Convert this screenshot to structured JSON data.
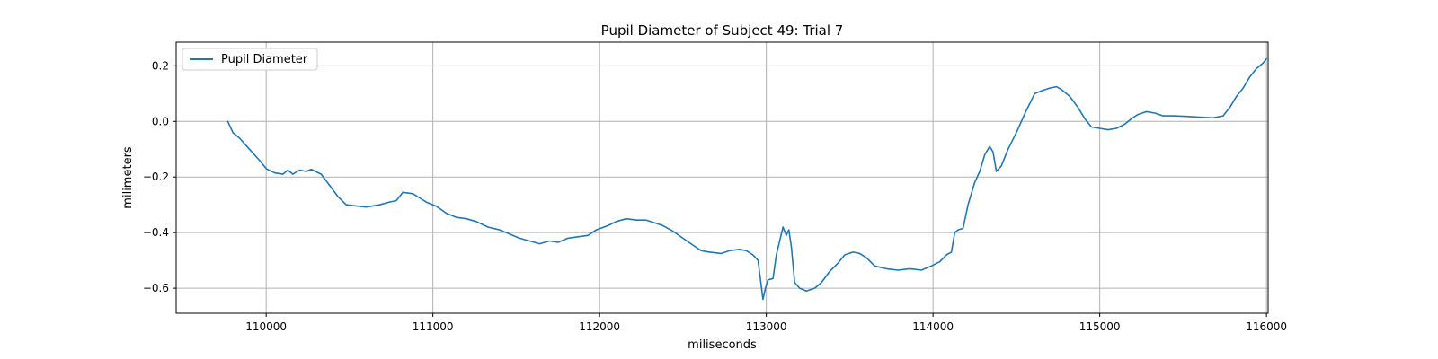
{
  "chart_data": {
    "type": "line",
    "title": "Pupil Diameter of Subject 49: Trial 7",
    "xlabel": "miliseconds",
    "ylabel": "milimeters",
    "xlim": [
      109460,
      116010
    ],
    "ylim": [
      -0.69,
      0.285
    ],
    "xticks": [
      110000,
      111000,
      112000,
      113000,
      114000,
      115000,
      116000
    ],
    "xtick_labels": [
      "110000",
      "111000",
      "112000",
      "113000",
      "114000",
      "115000",
      "116000"
    ],
    "yticks": [
      -0.6,
      -0.4,
      -0.2,
      0.0,
      0.2
    ],
    "ytick_labels": [
      "−0.6",
      "−0.4",
      "−0.2",
      "0.0",
      "0.2"
    ],
    "grid": true,
    "legend_position": "upper-left",
    "series": [
      {
        "name": "Pupil Diameter",
        "color": "#1f77b4",
        "points": [
          [
            109770,
            0.0
          ],
          [
            109800,
            -0.04
          ],
          [
            109840,
            -0.06
          ],
          [
            109900,
            -0.1
          ],
          [
            109960,
            -0.14
          ],
          [
            110000,
            -0.17
          ],
          [
            110050,
            -0.185
          ],
          [
            110100,
            -0.19
          ],
          [
            110130,
            -0.175
          ],
          [
            110160,
            -0.19
          ],
          [
            110200,
            -0.175
          ],
          [
            110240,
            -0.18
          ],
          [
            110270,
            -0.172
          ],
          [
            110330,
            -0.19
          ],
          [
            110380,
            -0.23
          ],
          [
            110430,
            -0.27
          ],
          [
            110480,
            -0.3
          ],
          [
            110550,
            -0.305
          ],
          [
            110600,
            -0.308
          ],
          [
            110680,
            -0.3
          ],
          [
            110740,
            -0.29
          ],
          [
            110780,
            -0.285
          ],
          [
            110820,
            -0.255
          ],
          [
            110880,
            -0.26
          ],
          [
            110920,
            -0.275
          ],
          [
            110960,
            -0.29
          ],
          [
            111020,
            -0.305
          ],
          [
            111080,
            -0.33
          ],
          [
            111140,
            -0.345
          ],
          [
            111200,
            -0.35
          ],
          [
            111260,
            -0.36
          ],
          [
            111330,
            -0.38
          ],
          [
            111400,
            -0.39
          ],
          [
            111460,
            -0.405
          ],
          [
            111520,
            -0.42
          ],
          [
            111580,
            -0.43
          ],
          [
            111640,
            -0.44
          ],
          [
            111700,
            -0.43
          ],
          [
            111750,
            -0.435
          ],
          [
            111810,
            -0.42
          ],
          [
            111870,
            -0.415
          ],
          [
            111930,
            -0.41
          ],
          [
            111980,
            -0.39
          ],
          [
            112050,
            -0.375
          ],
          [
            112100,
            -0.36
          ],
          [
            112160,
            -0.35
          ],
          [
            112220,
            -0.355
          ],
          [
            112280,
            -0.355
          ],
          [
            112330,
            -0.365
          ],
          [
            112380,
            -0.375
          ],
          [
            112440,
            -0.395
          ],
          [
            112500,
            -0.42
          ],
          [
            112560,
            -0.445
          ],
          [
            112610,
            -0.465
          ],
          [
            112660,
            -0.47
          ],
          [
            112730,
            -0.475
          ],
          [
            112780,
            -0.465
          ],
          [
            112840,
            -0.46
          ],
          [
            112880,
            -0.465
          ],
          [
            112920,
            -0.48
          ],
          [
            112950,
            -0.5
          ],
          [
            112965,
            -0.57
          ],
          [
            112980,
            -0.64
          ],
          [
            112995,
            -0.6
          ],
          [
            113010,
            -0.57
          ],
          [
            113040,
            -0.565
          ],
          [
            113060,
            -0.48
          ],
          [
            113080,
            -0.43
          ],
          [
            113100,
            -0.38
          ],
          [
            113120,
            -0.41
          ],
          [
            113135,
            -0.39
          ],
          [
            113150,
            -0.45
          ],
          [
            113170,
            -0.58
          ],
          [
            113200,
            -0.6
          ],
          [
            113240,
            -0.61
          ],
          [
            113290,
            -0.6
          ],
          [
            113330,
            -0.58
          ],
          [
            113380,
            -0.54
          ],
          [
            113430,
            -0.51
          ],
          [
            113470,
            -0.48
          ],
          [
            113520,
            -0.47
          ],
          [
            113560,
            -0.475
          ],
          [
            113600,
            -0.49
          ],
          [
            113650,
            -0.52
          ],
          [
            113720,
            -0.53
          ],
          [
            113790,
            -0.535
          ],
          [
            113860,
            -0.53
          ],
          [
            113930,
            -0.535
          ],
          [
            113990,
            -0.52
          ],
          [
            114040,
            -0.505
          ],
          [
            114080,
            -0.48
          ],
          [
            114110,
            -0.47
          ],
          [
            114130,
            -0.4
          ],
          [
            114150,
            -0.39
          ],
          [
            114180,
            -0.385
          ],
          [
            114210,
            -0.3
          ],
          [
            114250,
            -0.22
          ],
          [
            114280,
            -0.18
          ],
          [
            114310,
            -0.12
          ],
          [
            114340,
            -0.09
          ],
          [
            114360,
            -0.11
          ],
          [
            114380,
            -0.18
          ],
          [
            114410,
            -0.16
          ],
          [
            114450,
            -0.1
          ],
          [
            114500,
            -0.04
          ],
          [
            114560,
            0.04
          ],
          [
            114610,
            0.1
          ],
          [
            114650,
            0.11
          ],
          [
            114700,
            0.12
          ],
          [
            114740,
            0.125
          ],
          [
            114770,
            0.115
          ],
          [
            114820,
            0.09
          ],
          [
            114870,
            0.05
          ],
          [
            114910,
            0.01
          ],
          [
            114950,
            -0.02
          ],
          [
            115000,
            -0.025
          ],
          [
            115050,
            -0.03
          ],
          [
            115100,
            -0.025
          ],
          [
            115150,
            -0.01
          ],
          [
            115190,
            0.01
          ],
          [
            115230,
            0.025
          ],
          [
            115280,
            0.035
          ],
          [
            115330,
            0.03
          ],
          [
            115380,
            0.02
          ],
          [
            115440,
            0.02
          ],
          [
            115520,
            0.018
          ],
          [
            115600,
            0.015
          ],
          [
            115680,
            0.013
          ],
          [
            115740,
            0.02
          ],
          [
            115780,
            0.05
          ],
          [
            115820,
            0.09
          ],
          [
            115860,
            0.12
          ],
          [
            115900,
            0.16
          ],
          [
            115940,
            0.19
          ],
          [
            115980,
            0.21
          ],
          [
            116000,
            0.225
          ]
        ]
      }
    ]
  }
}
